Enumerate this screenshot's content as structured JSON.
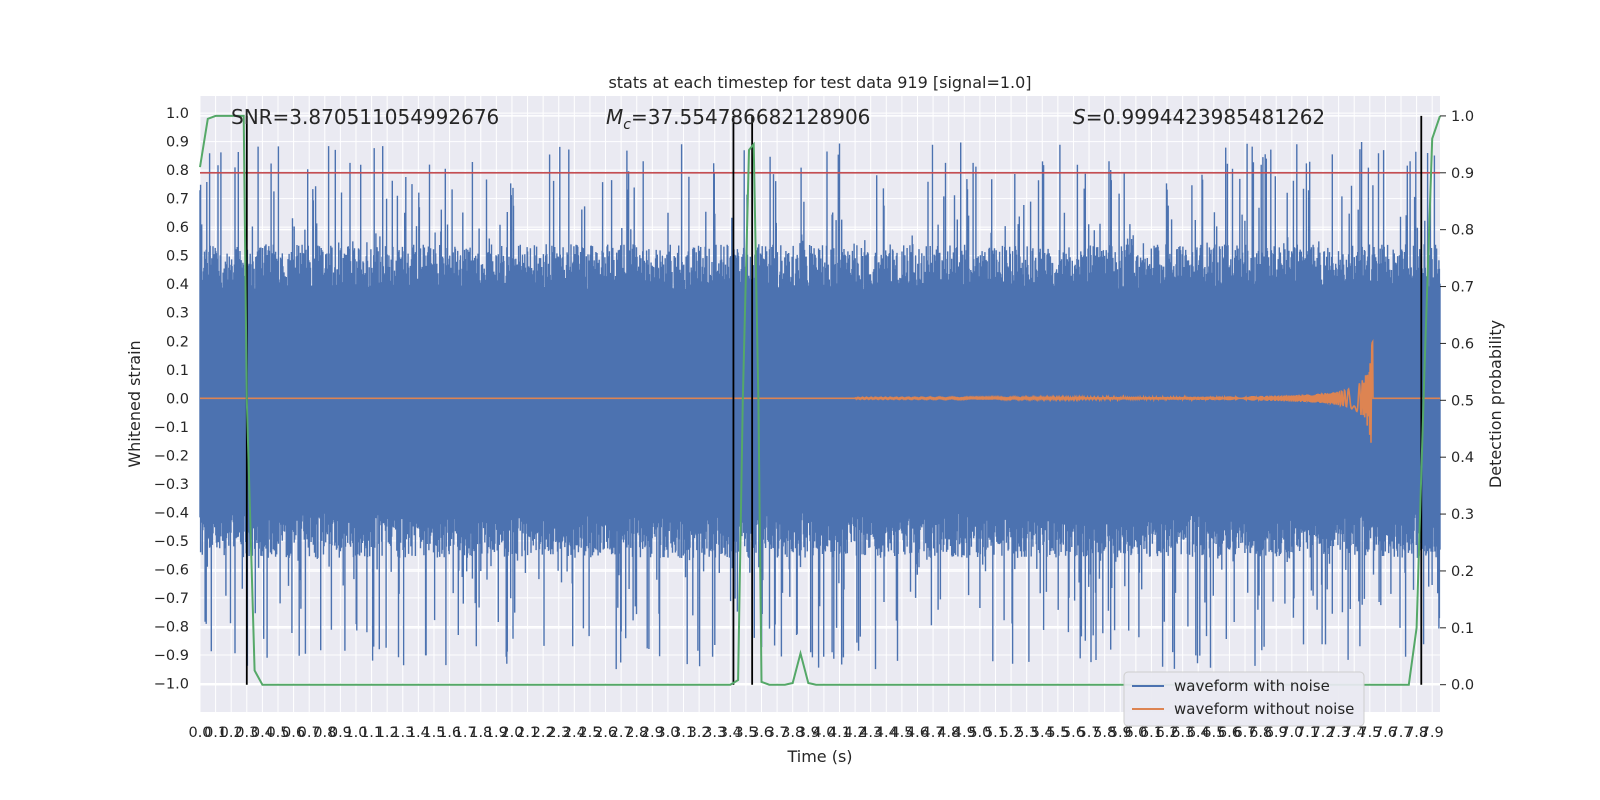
{
  "chart_data": {
    "type": "line",
    "title": "stats at each timestep for test data 919 [signal=1.0]",
    "xlabel": "Time (s)",
    "ylabel": "Whitened strain",
    "y2label": "Detection probability",
    "xlim": [
      0.0,
      7.95
    ],
    "ylim": [
      -1.1,
      1.06
    ],
    "y2lim": [
      -0.048,
      1.035
    ],
    "x_ticks": [
      "0.0",
      "0.1",
      "0.2",
      "0.3",
      "0.4",
      "0.5",
      "0.6",
      "0.7",
      "0.8",
      "0.9",
      "1.0",
      "1.1",
      "1.2",
      "1.3",
      "1.4",
      "1.5",
      "1.6",
      "1.7",
      "1.8",
      "1.9",
      "2.0",
      "2.1",
      "2.2",
      "2.3",
      "2.4",
      "2.5",
      "2.6",
      "2.7",
      "2.8",
      "2.9",
      "3.0",
      "3.1",
      "3.2",
      "3.3",
      "3.4",
      "3.5",
      "3.6",
      "3.7",
      "3.8",
      "3.9",
      "4.0",
      "4.1",
      "4.2",
      "4.3",
      "4.4",
      "4.5",
      "4.6",
      "4.7",
      "4.8",
      "4.9",
      "5.0",
      "5.1",
      "5.2",
      "5.3",
      "5.4",
      "5.5",
      "5.6",
      "5.7",
      "5.8",
      "5.9",
      "6.0",
      "6.1",
      "6.2",
      "6.3",
      "6.4",
      "6.5",
      "6.6",
      "6.7",
      "6.8",
      "6.9",
      "7.0",
      "7.1",
      "7.2",
      "7.3",
      "7.4",
      "7.5",
      "7.6",
      "7.7",
      "7.8",
      "7.9"
    ],
    "y_ticks": [
      "1.0",
      "0.9",
      "0.8",
      "0.7",
      "0.6",
      "0.5",
      "0.4",
      "0.3",
      "0.2",
      "0.1",
      "0.0",
      "-0.1",
      "-0.2",
      "-0.3",
      "-0.4",
      "-0.5",
      "-0.6",
      "-0.7",
      "-0.8",
      "-0.9",
      "-1.0"
    ],
    "y2_ticks": [
      "1.0",
      "0.9",
      "0.8",
      "0.7",
      "0.6",
      "0.5",
      "0.4",
      "0.3",
      "0.2",
      "0.1",
      "0.0"
    ],
    "annotations": {
      "snr": "SNR=3.870511054992676",
      "mc_symbol": "M",
      "mc_subscript": "c",
      "mc_value": "=37.554786682128906",
      "s_symbol": "S",
      "s_value": "=0.9994423985481262"
    },
    "series": [
      {
        "name": "waveform with noise",
        "color": "#4c72b0",
        "approx_envelope": {
          "upper": 0.38,
          "lower": -0.4,
          "max": 0.96,
          "min": -1.0
        }
      },
      {
        "name": "waveform without noise",
        "color": "#dd8452",
        "chirp": {
          "start_x": 4.2,
          "merger_x": 7.5,
          "peak_amplitude": 0.24
        }
      }
    ],
    "detection_probability": {
      "color": "#55a868",
      "x": [
        0.0,
        0.05,
        0.1,
        0.15,
        0.2,
        0.25,
        0.28,
        0.3,
        0.35,
        0.4,
        0.5,
        1.0,
        2.0,
        3.0,
        3.3,
        3.4,
        3.45,
        3.48,
        3.52,
        3.55,
        3.58,
        3.6,
        3.65,
        3.75,
        3.8,
        3.85,
        3.9,
        3.95,
        4.0,
        4.2,
        5.0,
        6.0,
        7.0,
        7.5,
        7.7,
        7.75,
        7.8,
        7.85,
        7.9,
        7.95
      ],
      "y": [
        0.91,
        0.995,
        1.0,
        1.0,
        1.0,
        1.0,
        1.0,
        0.5,
        0.025,
        0.0,
        0.0,
        0.0,
        0.0,
        0.0,
        0.0,
        0.0,
        0.008,
        0.5,
        0.94,
        0.95,
        0.5,
        0.005,
        0.0,
        0.0,
        0.003,
        0.055,
        0.003,
        0.0,
        0.0,
        0.0,
        0.0,
        0.0,
        0.0,
        0.0,
        0.0,
        0.0,
        0.1,
        0.55,
        0.96,
        1.0
      ]
    },
    "threshold_y": 0.9,
    "threshold_color": "#c44e52",
    "vertical_lines_x": [
      0.3,
      3.42,
      3.54,
      7.83
    ],
    "legend_placement": "bottom-right",
    "grid": true
  }
}
